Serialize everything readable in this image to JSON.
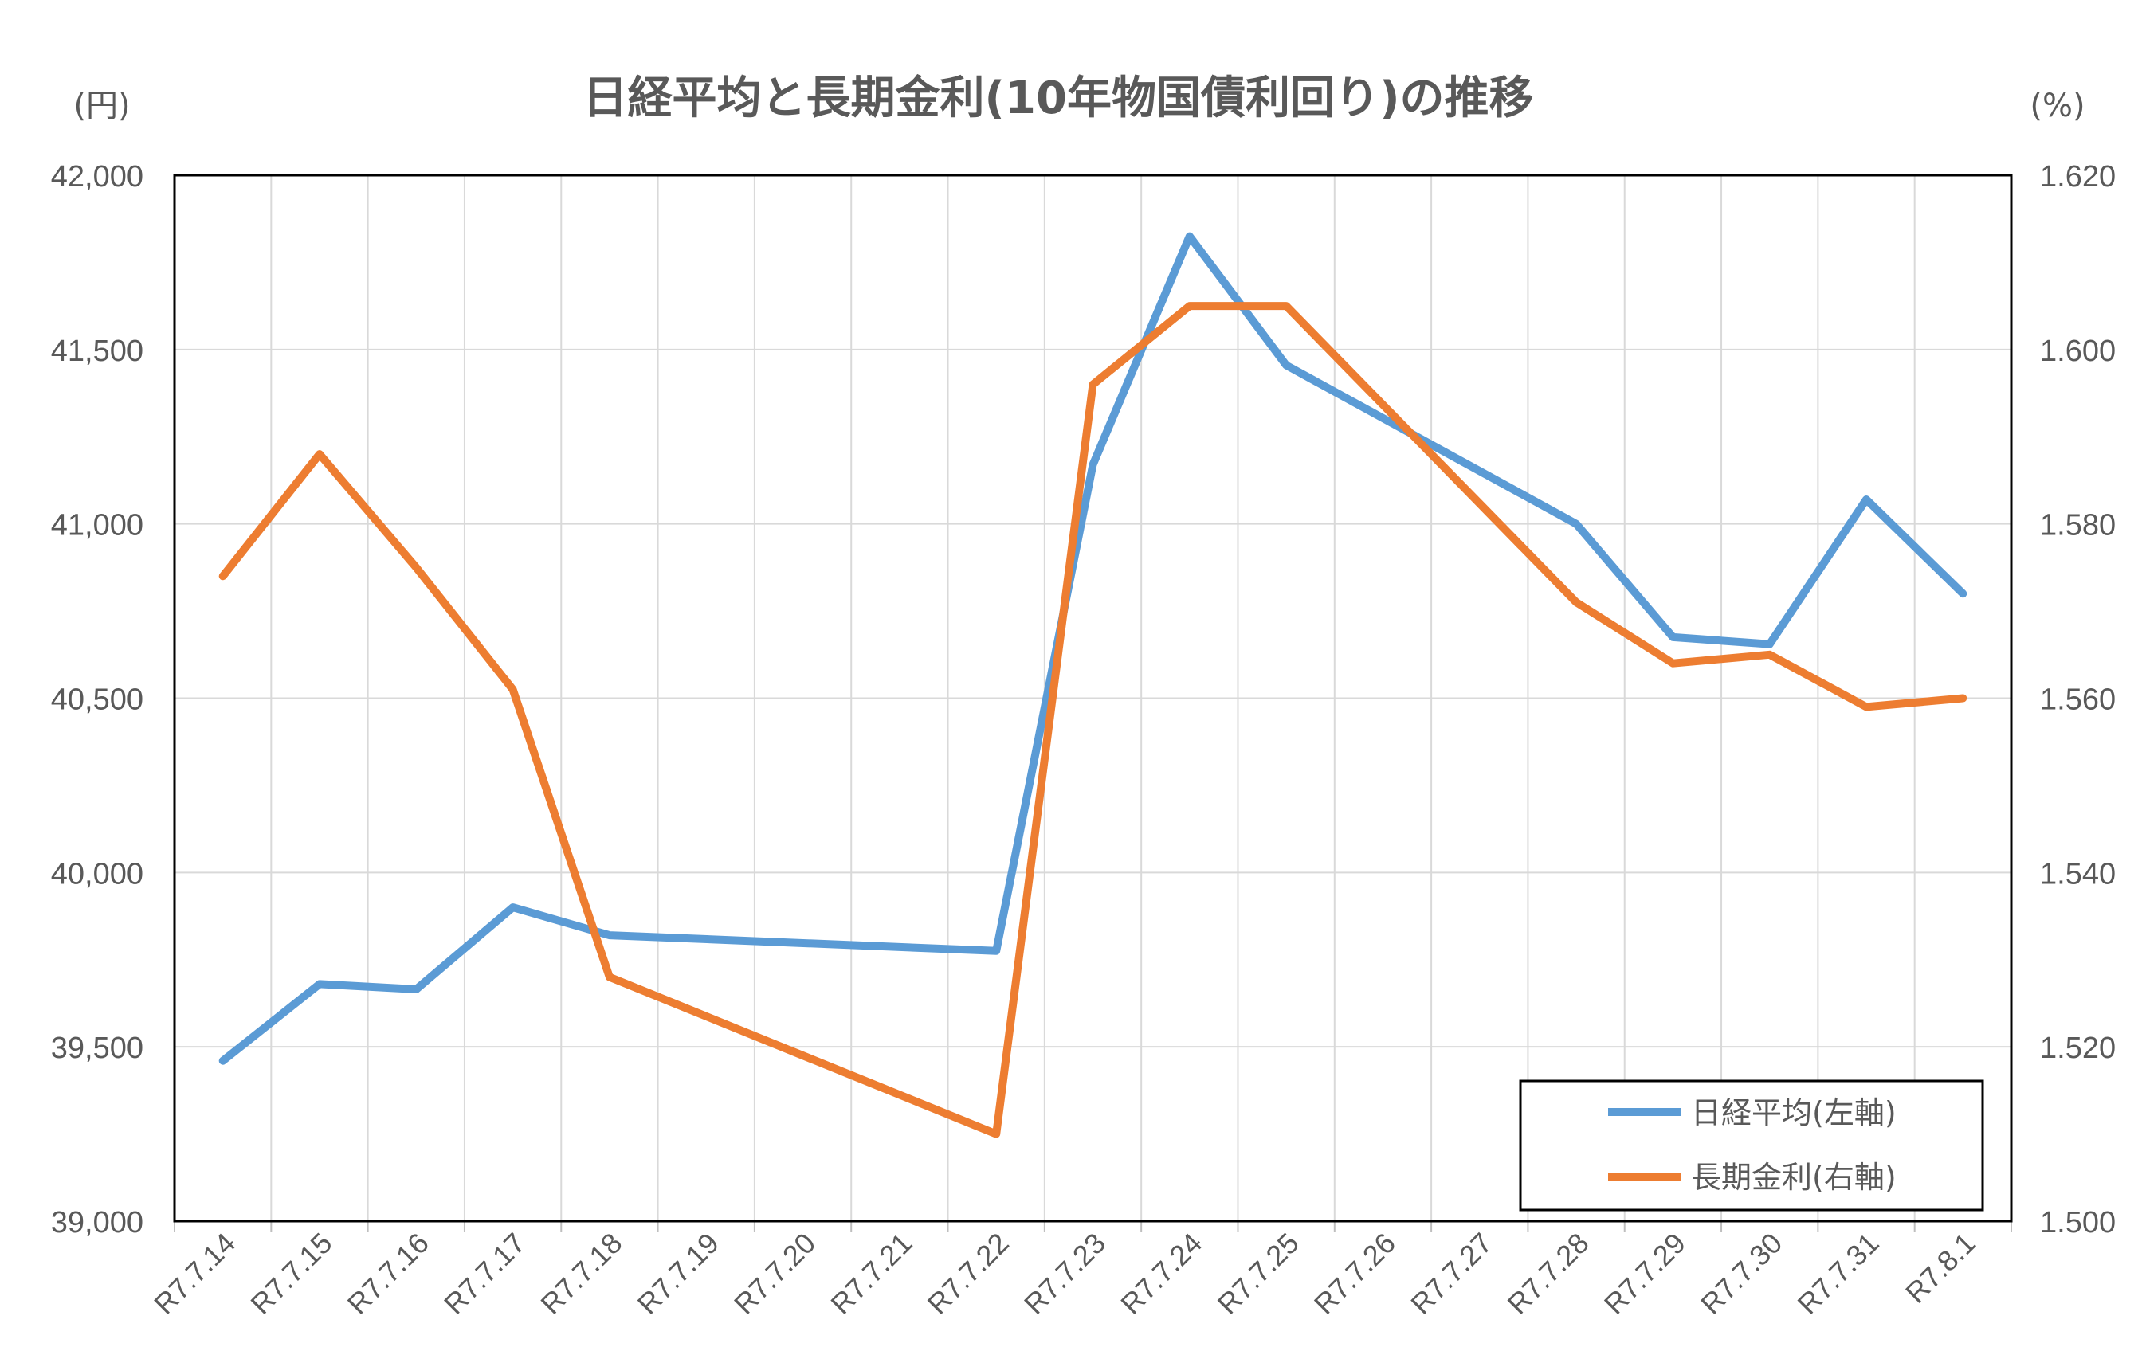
{
  "chart_data": {
    "type": "line",
    "title": "日経平均と長期金利(10年物国債利回り)の推移",
    "left_axis": {
      "unit": "(円)",
      "min": 39000,
      "max": 42000,
      "step": 500,
      "tick_labels": [
        "39,000",
        "39,500",
        "40,000",
        "40,500",
        "41,000",
        "41,500",
        "42,000"
      ]
    },
    "right_axis": {
      "unit": "(%)",
      "min": 1.5,
      "max": 1.62,
      "step": 0.02,
      "tick_labels": [
        "1.500",
        "1.520",
        "1.540",
        "1.560",
        "1.580",
        "1.600",
        "1.620"
      ]
    },
    "categories": [
      "R7.7.14",
      "R7.7.15",
      "R7.7.16",
      "R7.7.17",
      "R7.7.18",
      "R7.7.19",
      "R7.7.20",
      "R7.7.21",
      "R7.7.22",
      "R7.7.23",
      "R7.7.24",
      "R7.7.25",
      "R7.7.26",
      "R7.7.27",
      "R7.7.28",
      "R7.7.29",
      "R7.7.30",
      "R7.7.31",
      "R7.8.1"
    ],
    "grid": true,
    "legend_position": "bottom-right",
    "series": [
      {
        "name": "日経平均(左軸)",
        "axis": "left",
        "color": "#5B9BD5",
        "points": [
          {
            "x": "R7.7.14",
            "y": 39460
          },
          {
            "x": "R7.7.15",
            "y": 39680
          },
          {
            "x": "R7.7.16",
            "y": 39665
          },
          {
            "x": "R7.7.17",
            "y": 39900
          },
          {
            "x": "R7.7.18",
            "y": 39820
          },
          {
            "x": "R7.7.22",
            "y": 39775
          },
          {
            "x": "R7.7.23",
            "y": 41170
          },
          {
            "x": "R7.7.24",
            "y": 41825
          },
          {
            "x": "R7.7.25",
            "y": 41455
          },
          {
            "x": "R7.7.28",
            "y": 41000
          },
          {
            "x": "R7.7.29",
            "y": 40675
          },
          {
            "x": "R7.7.30",
            "y": 40655
          },
          {
            "x": "R7.7.31",
            "y": 41070
          },
          {
            "x": "R7.8.1",
            "y": 40800
          }
        ]
      },
      {
        "name": "長期金利(右軸)",
        "axis": "right",
        "color": "#ED7D31",
        "points": [
          {
            "x": "R7.7.14",
            "y": 1.574
          },
          {
            "x": "R7.7.15",
            "y": 1.588
          },
          {
            "x": "R7.7.16",
            "y": 1.575
          },
          {
            "x": "R7.7.17",
            "y": 1.561
          },
          {
            "x": "R7.7.18",
            "y": 1.528
          },
          {
            "x": "R7.7.22",
            "y": 1.51
          },
          {
            "x": "R7.7.23",
            "y": 1.596
          },
          {
            "x": "R7.7.24",
            "y": 1.605
          },
          {
            "x": "R7.7.25",
            "y": 1.605
          },
          {
            "x": "R7.7.28",
            "y": 1.571
          },
          {
            "x": "R7.7.29",
            "y": 1.564
          },
          {
            "x": "R7.7.30",
            "y": 1.565
          },
          {
            "x": "R7.7.31",
            "y": 1.559
          },
          {
            "x": "R7.8.1",
            "y": 1.56
          }
        ]
      }
    ]
  }
}
